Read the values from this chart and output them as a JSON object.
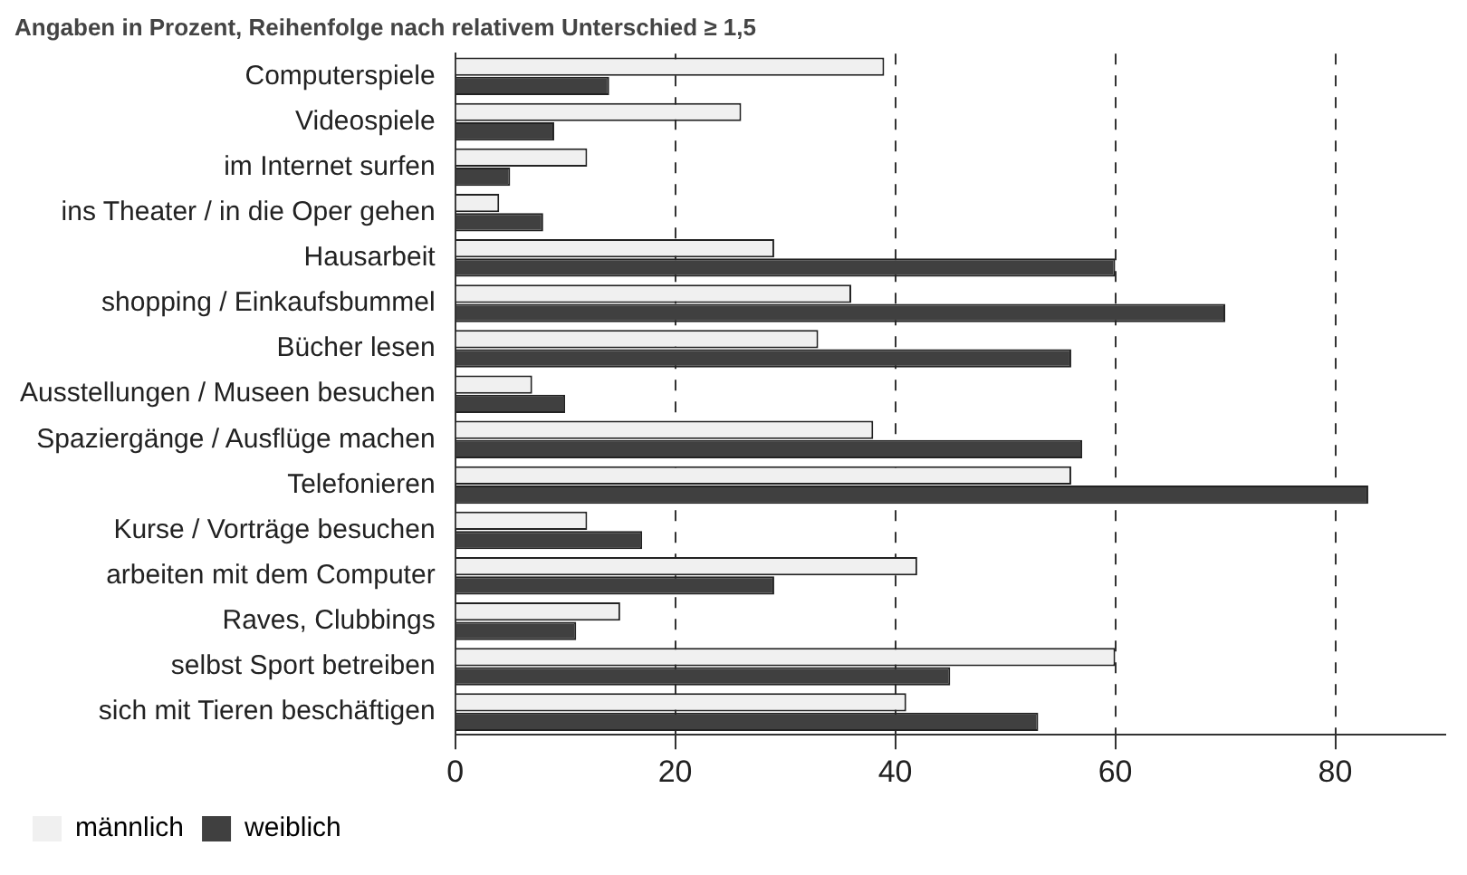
{
  "chart_data": {
    "type": "bar",
    "orientation": "horizontal",
    "title": "Angaben in Prozent, Reihenfolge nach relativem Unterschied ≥ 1,5",
    "categories": [
      "Computerspiele",
      "Videospiele",
      "im Internet surfen",
      "ins Theater / in die Oper gehen",
      "Hausarbeit",
      "shopping / Einkaufsbummel",
      "Bücher lesen",
      "Ausstellungen / Museen besuchen",
      "Spaziergänge / Ausflüge machen",
      "Telefonieren",
      "Kurse / Vorträge besuchen",
      "arbeiten mit dem Computer",
      "Raves, Clubbings",
      "selbst Sport betreiben",
      "sich mit Tieren beschäftigen"
    ],
    "series": [
      {
        "name": "männlich",
        "color": "#f0f0f0",
        "values": [
          39,
          26,
          12,
          4,
          29,
          36,
          33,
          7,
          38,
          56,
          12,
          42,
          15,
          60,
          41
        ]
      },
      {
        "name": "weiblich",
        "color": "#404040",
        "values": [
          14,
          9,
          5,
          8,
          60,
          70,
          56,
          10,
          57,
          83,
          17,
          29,
          11,
          45,
          53
        ]
      }
    ],
    "xlim": [
      0,
      90
    ],
    "xticks": [
      0,
      20,
      40,
      60,
      80
    ],
    "grid": "x",
    "legend": "bottom"
  }
}
